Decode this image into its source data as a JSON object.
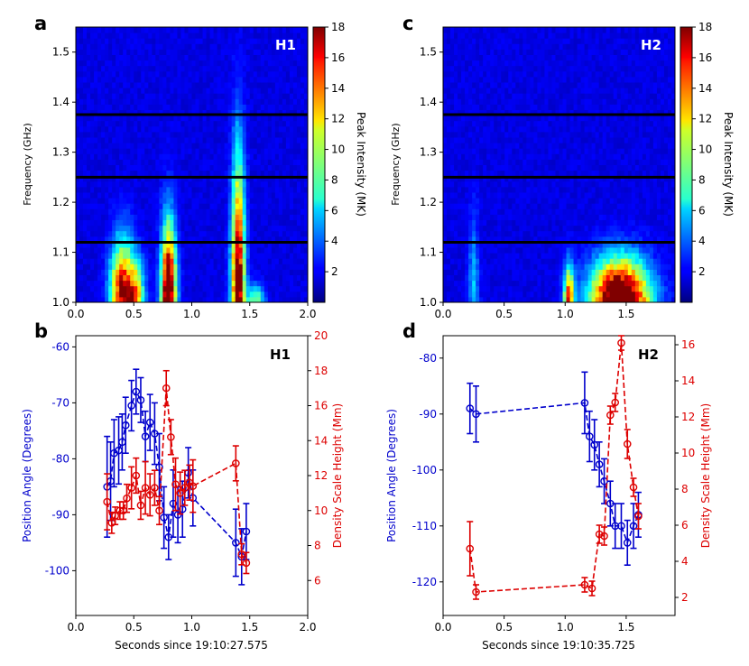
{
  "chart_data": [
    {
      "id": "a",
      "type": "heatmap",
      "panel_letter": "a",
      "label": "H1",
      "ylabel": "Frequency (GHz)",
      "xlim": [
        0,
        2.0
      ],
      "ylim": [
        1.0,
        1.55
      ],
      "xticks": [
        "0.0",
        "0.5",
        "1.0",
        "1.5",
        "2.0"
      ],
      "yticks": [
        "1.0",
        "1.1",
        "1.2",
        "1.3",
        "1.4",
        "1.5"
      ],
      "hlines": [
        1.12,
        1.25,
        1.375
      ],
      "colorbar": {
        "label": "Peak Intensity (MK)",
        "range": [
          0,
          18
        ],
        "ticks": [
          "2",
          "4",
          "6",
          "8",
          "10",
          "12",
          "14",
          "16",
          "18"
        ]
      },
      "hotspots": [
        {
          "t": 0.4,
          "sigma_t": 0.07,
          "f_top": 1.17,
          "amp": 16
        },
        {
          "t": 0.52,
          "sigma_t": 0.05,
          "f_top": 1.12,
          "amp": 10
        },
        {
          "t": 0.8,
          "sigma_t": 0.045,
          "f_top": 1.22,
          "amp": 20
        },
        {
          "t": 1.4,
          "sigma_t": 0.04,
          "f_top": 1.4,
          "amp": 18
        },
        {
          "t": 1.55,
          "sigma_t": 0.05,
          "f_top": 1.05,
          "amp": 8
        }
      ]
    },
    {
      "id": "c",
      "type": "heatmap",
      "panel_letter": "c",
      "label": "H2",
      "ylabel": "Frequency (GHz)",
      "xlim": [
        0,
        1.9
      ],
      "ylim": [
        1.0,
        1.55
      ],
      "xticks": [
        "0.0",
        "0.5",
        "1.0",
        "1.5"
      ],
      "yticks": [
        "1.0",
        "1.1",
        "1.2",
        "1.3",
        "1.4",
        "1.5"
      ],
      "hlines": [
        1.12,
        1.25,
        1.375
      ],
      "colorbar": {
        "label": "Peak Intensity (MK)",
        "range": [
          0,
          18
        ],
        "ticks": [
          "2",
          "4",
          "6",
          "8",
          "10",
          "12",
          "14",
          "16",
          "18"
        ]
      },
      "hotspots": [
        {
          "t": 1.45,
          "sigma_t": 0.16,
          "f_top": 1.12,
          "amp": 22
        },
        {
          "t": 1.03,
          "sigma_t": 0.03,
          "f_top": 1.1,
          "amp": 14
        },
        {
          "t": 0.25,
          "sigma_t": 0.03,
          "f_top": 1.25,
          "amp": 4
        }
      ]
    },
    {
      "id": "b",
      "type": "line",
      "panel_letter": "b",
      "label": "H1",
      "xlabel": "Seconds since 19:10:27.575",
      "ylabel_left": "Position Angle (Degrees)",
      "ylabel_right": "Density Scale Height (Mm)",
      "xlim": [
        0,
        2.0
      ],
      "ylim_left": [
        -108,
        -58
      ],
      "ylim_right": [
        4,
        20
      ],
      "xticks": [
        "0.0",
        "0.5",
        "1.0",
        "1.5",
        "2.0"
      ],
      "yticks_left": [
        "-60",
        "-70",
        "-80",
        "-90",
        "-100"
      ],
      "yticks_right": [
        "6",
        "8",
        "10",
        "12",
        "14",
        "16",
        "18",
        "20"
      ],
      "series": [
        {
          "name": "Position Angle",
          "axis": "left",
          "color": "#0000cc",
          "x": [
            0.27,
            0.3,
            0.33,
            0.37,
            0.4,
            0.43,
            0.48,
            0.52,
            0.56,
            0.6,
            0.64,
            0.68,
            0.72,
            0.76,
            0.8,
            0.84,
            0.88,
            0.92,
            0.97,
            1.01,
            1.38,
            1.43,
            1.47
          ],
          "y": [
            -85,
            -84,
            -79,
            -78.5,
            -77,
            -74,
            -70.5,
            -68,
            -69.5,
            -76,
            -73.5,
            -75.5,
            -81.5,
            -90.5,
            -94,
            -88,
            -90,
            -89,
            -82.5,
            -87,
            -95,
            -97.5,
            -93
          ],
          "err": [
            9,
            7,
            6,
            6,
            5,
            5,
            4.5,
            4,
            4,
            4.5,
            5,
            5.5,
            6,
            5.5,
            4,
            6,
            5,
            5,
            4.5,
            5,
            6,
            5,
            5
          ]
        },
        {
          "name": "Density Scale Height",
          "axis": "right",
          "color": "#dd0000",
          "x": [
            0.27,
            0.31,
            0.34,
            0.38,
            0.41,
            0.44,
            0.48,
            0.52,
            0.56,
            0.6,
            0.64,
            0.68,
            0.72,
            0.78,
            0.82,
            0.86,
            0.9,
            0.94,
            0.98,
            1.01,
            1.38,
            1.43,
            1.47
          ],
          "y": [
            10.5,
            9.3,
            9.7,
            10.0,
            10.0,
            10.7,
            11.3,
            12.0,
            10.3,
            11.3,
            10.9,
            11.3,
            10.0,
            17.0,
            14.2,
            11.5,
            11.0,
            11.3,
            11.6,
            11.4,
            12.7,
            7.5,
            7.0
          ],
          "err": [
            1.6,
            0.6,
            0.5,
            0.5,
            0.5,
            0.8,
            1.2,
            1.0,
            0.8,
            1.5,
            1.2,
            1.0,
            0.8,
            1.0,
            1.0,
            1.5,
            1.2,
            1.0,
            1.0,
            1.5,
            1.0,
            0.6,
            0.6
          ]
        }
      ]
    },
    {
      "id": "d",
      "type": "line",
      "panel_letter": "d",
      "label": "H2",
      "xlabel": "Seconds since 19:10:35.725",
      "ylabel_left": "Position Angle (Degrees)",
      "ylabel_right": "Density Scale Height (Mm)",
      "xlim": [
        0,
        1.9
      ],
      "ylim_left": [
        -126,
        -76
      ],
      "ylim_right": [
        1,
        16.5
      ],
      "xticks": [
        "0.0",
        "0.5",
        "1.0",
        "1.5"
      ],
      "yticks_left": [
        "-80",
        "-90",
        "-100",
        "-110",
        "-120"
      ],
      "yticks_right": [
        "2",
        "4",
        "6",
        "8",
        "10",
        "12",
        "14",
        "16"
      ],
      "series": [
        {
          "name": "Position Angle",
          "axis": "left",
          "color": "#0000cc",
          "x": [
            0.22,
            0.27,
            1.16,
            1.2,
            1.24,
            1.28,
            1.32,
            1.37,
            1.41,
            1.46,
            1.51,
            1.56,
            1.6
          ],
          "y": [
            -89,
            -90,
            -88,
            -94,
            -95.5,
            -99,
            -102,
            -106,
            -110,
            -110,
            -113,
            -110,
            -108
          ],
          "err": [
            4.5,
            5,
            5.5,
            4.5,
            4.5,
            4,
            4,
            4,
            4,
            4,
            4,
            4,
            4
          ]
        },
        {
          "name": "Density Scale Height",
          "axis": "right",
          "color": "#dd0000",
          "x": [
            0.22,
            0.27,
            1.16,
            1.22,
            1.28,
            1.32,
            1.37,
            1.41,
            1.46,
            1.51,
            1.56,
            1.6
          ],
          "y": [
            4.7,
            2.3,
            2.7,
            2.5,
            5.5,
            5.4,
            12.1,
            12.8,
            16.1,
            10.5,
            8.1,
            6.5
          ],
          "err": [
            1.5,
            0.4,
            0.4,
            0.4,
            0.5,
            0.5,
            0.5,
            0.5,
            0.4,
            0.8,
            0.5,
            0.7
          ]
        }
      ]
    }
  ]
}
